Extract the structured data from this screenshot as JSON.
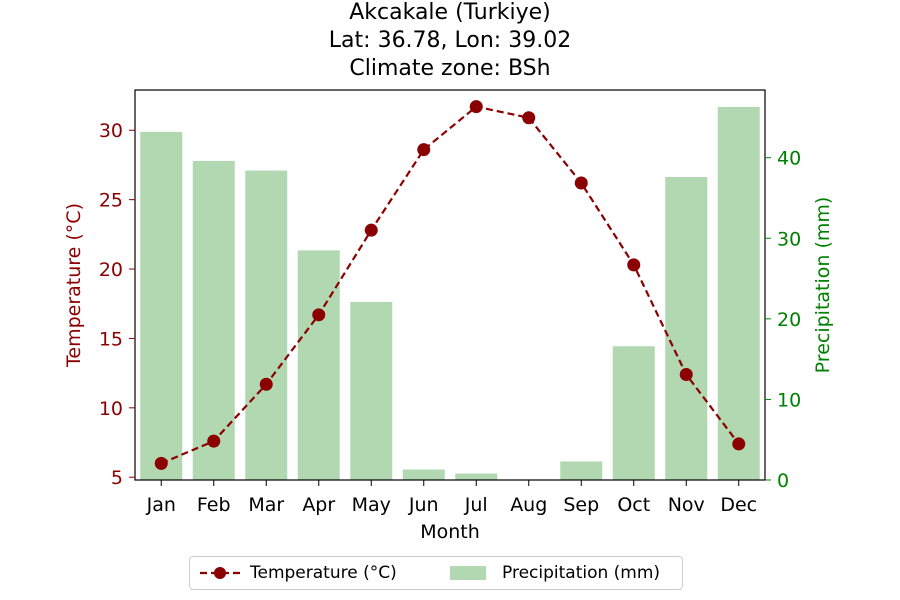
{
  "chart_data": {
    "type": "bar+line",
    "title_lines": [
      "Akcakale (Turkiye)",
      "Lat: 36.78, Lon: 39.02",
      "Climate zone: BSh"
    ],
    "xlabel": "Month",
    "ylabel_left": "Temperature (°C)",
    "ylabel_right": "Precipitation (mm)",
    "categories": [
      "Jan",
      "Feb",
      "Mar",
      "Apr",
      "May",
      "Jun",
      "Jul",
      "Aug",
      "Sep",
      "Oct",
      "Nov",
      "Dec"
    ],
    "temperature": {
      "name": "Temperature (°C)",
      "color": "#8b0000",
      "values": [
        6.0,
        7.6,
        11.7,
        16.7,
        22.8,
        28.6,
        31.7,
        30.9,
        26.2,
        20.3,
        12.4,
        7.4
      ]
    },
    "precipitation": {
      "name": "Precipitation (mm)",
      "color": "#b2d8b2",
      "values": [
        43.2,
        39.6,
        38.4,
        28.5,
        22.1,
        1.3,
        0.8,
        0.0,
        2.3,
        16.6,
        37.6,
        46.3
      ]
    },
    "ylim_left": [
      4.8,
      32.9
    ],
    "ylim_right": [
      0,
      48.4
    ],
    "yticks_left": [
      5,
      10,
      15,
      20,
      25,
      30
    ],
    "yticks_right": [
      0,
      10,
      20,
      30,
      40
    ],
    "left_axis_color": "#8b0000",
    "right_axis_color": "#008000",
    "legend_position": "bottom-center"
  }
}
